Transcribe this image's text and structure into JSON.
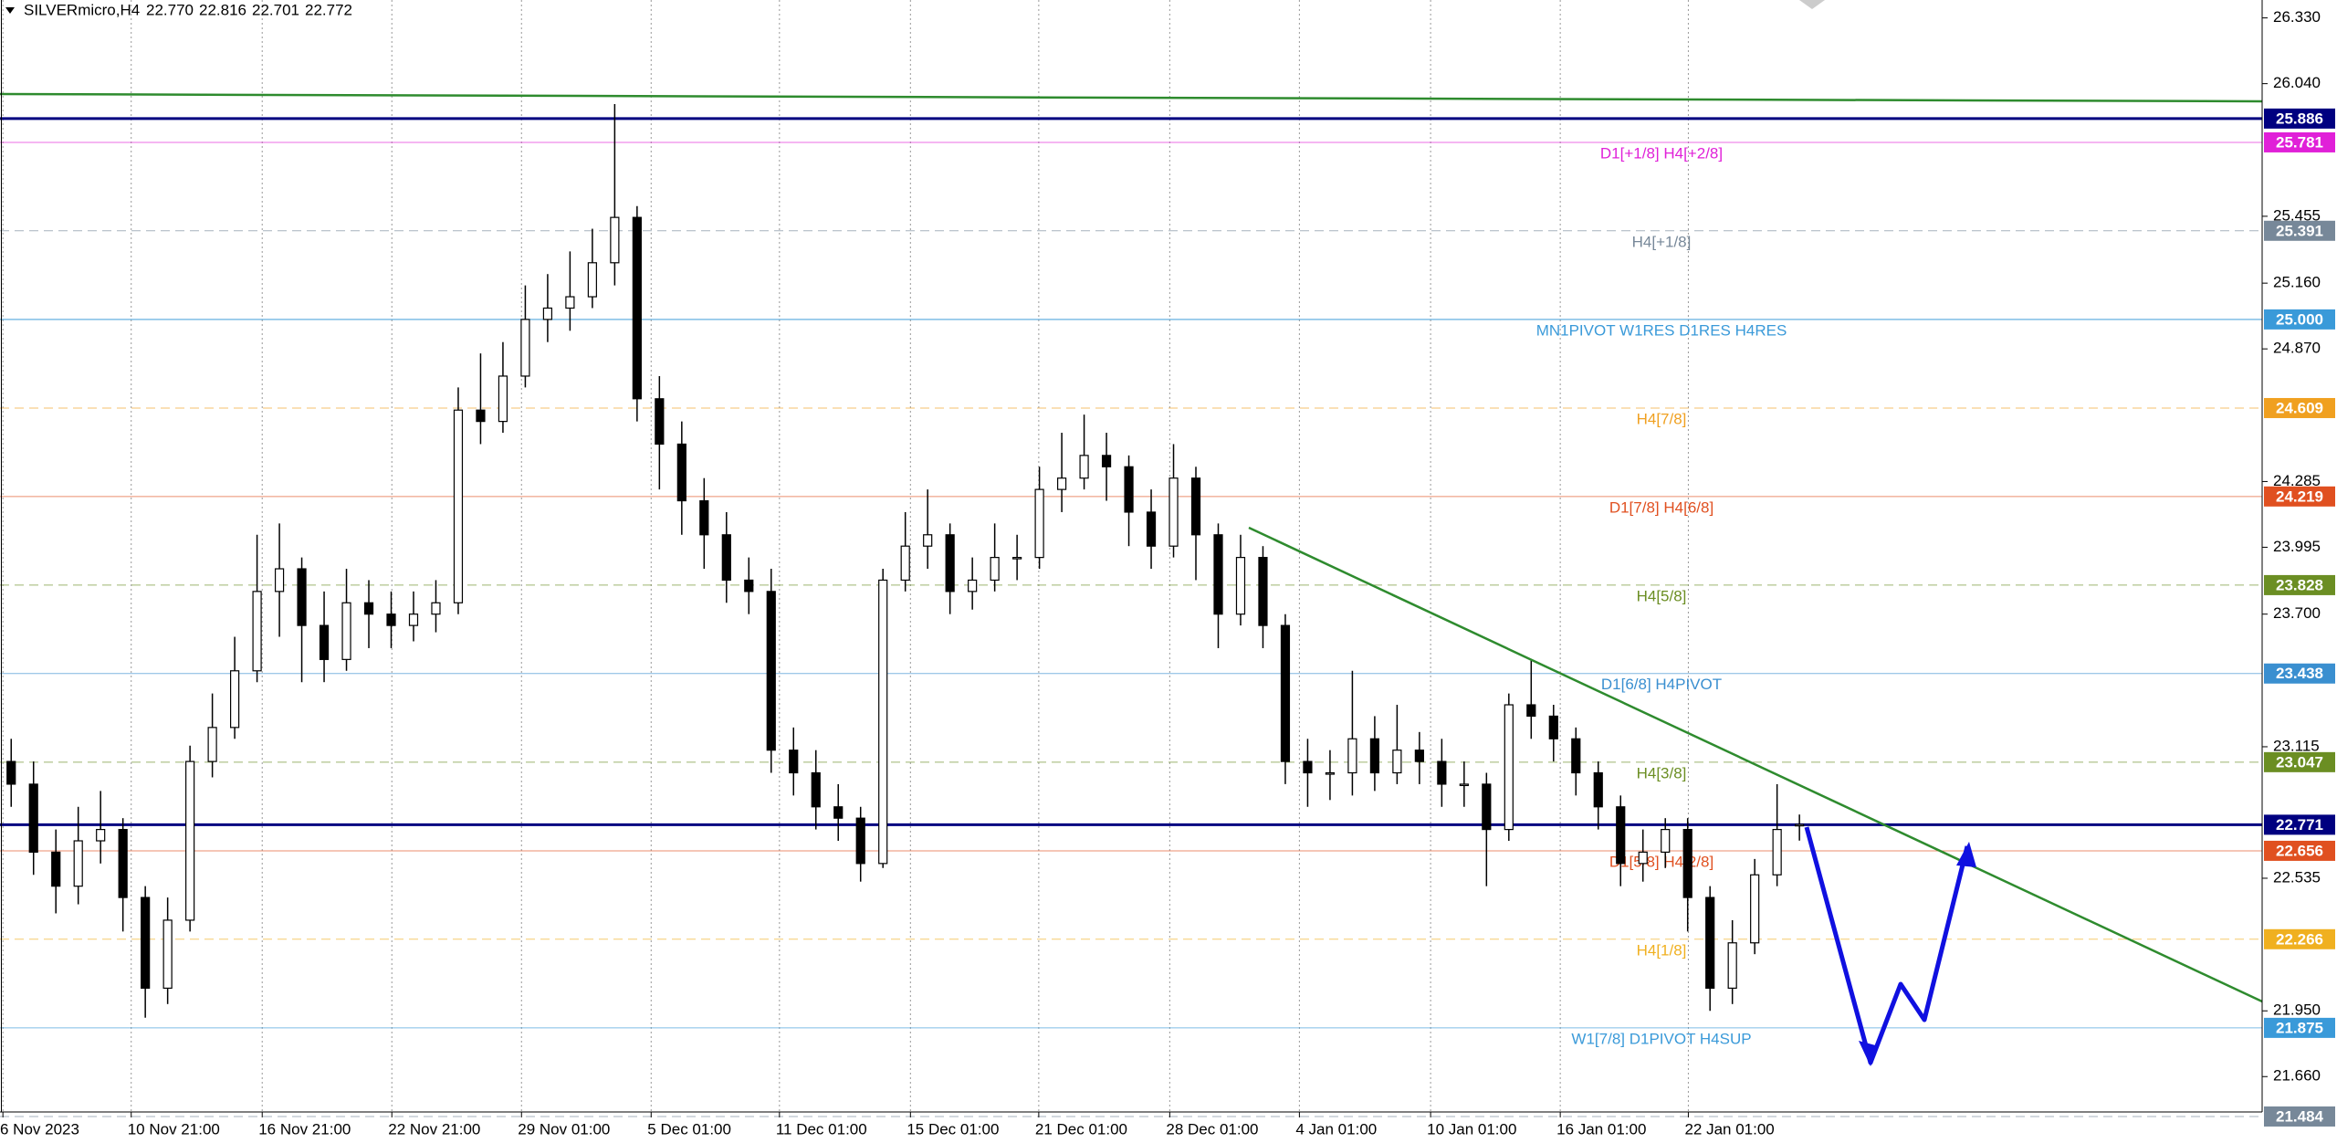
{
  "header": {
    "symbol": "SILVERmicro,H4",
    "ohlc": [
      "22.770",
      "22.816",
      "22.701",
      "22.772"
    ]
  },
  "chart_data": {
    "type": "candlestick",
    "xlim": [
      0,
      101.2
    ],
    "ylim": [
      21.504,
      26.409
    ],
    "yticks": [
      {
        "value": 26.33,
        "label": "26.330"
      },
      {
        "value": 26.04,
        "label": "26.040"
      },
      25.455,
      {
        "value": 25.16,
        "label": "25.160"
      },
      {
        "value": 24.87,
        "label": "24.870"
      },
      24.285,
      23.995,
      {
        "value": 23.7,
        "label": "23.700"
      },
      23.115,
      22.535,
      {
        "value": 21.95,
        "label": "21.950"
      },
      {
        "value": 21.66,
        "label": "21.660"
      }
    ],
    "xticks": [
      {
        "value": 0.13,
        "label": "6 Nov 2023"
      },
      {
        "value": 5.87,
        "label": "10 Nov 21:00"
      },
      {
        "value": 11.73,
        "label": "16 Nov 21:00"
      },
      {
        "value": 17.53,
        "label": "22 Nov 21:00"
      },
      {
        "value": 23.33,
        "label": "29 Nov 01:00"
      },
      {
        "value": 29.13,
        "label": "5 Dec 01:00"
      },
      {
        "value": 34.87,
        "label": "11 Dec 01:00"
      },
      {
        "value": 40.73,
        "label": "15 Dec 01:00"
      },
      {
        "value": 46.47,
        "label": "21 Dec 01:00"
      },
      {
        "value": 52.33,
        "label": "28 Dec 01:00"
      },
      {
        "value": 58.13,
        "label": "4 Jan 01:00"
      },
      {
        "value": 64,
        "label": "10 Jan 01:00"
      },
      {
        "value": 69.8,
        "label": "16 Jan 01:00"
      },
      {
        "value": 75.53,
        "label": "22 Jan 01:00"
      }
    ],
    "grid": true,
    "up_color": "#ffffff",
    "down_color": "#000000",
    "open": [
      23.05,
      22.95,
      22.65,
      22.5,
      22.7,
      22.75,
      22.45,
      22.05,
      22.35,
      23.05,
      23.2,
      23.45,
      23.8,
      23.9,
      23.65,
      23.5,
      23.75,
      23.7,
      23.65,
      23.7,
      23.75,
      24.6,
      24.55,
      24.75,
      25.0,
      25.05,
      25.1,
      25.25,
      25.45,
      24.65,
      24.45,
      24.2,
      24.05,
      23.85,
      23.8,
      23.1,
      23.0,
      22.85,
      22.8,
      22.6,
      23.85,
      24.0,
      24.05,
      23.8,
      23.85,
      23.95,
      23.95,
      24.25,
      24.3,
      24.4,
      24.35,
      24.15,
      24.0,
      24.3,
      24.05,
      23.7,
      23.95,
      23.65,
      23.05,
      23.0,
      23.0,
      23.15,
      23.0,
      23.1,
      23.05,
      22.95,
      22.95,
      22.75,
      23.3,
      23.25,
      23.15,
      23.0,
      22.85,
      22.6,
      22.65,
      22.75,
      22.45,
      22.05,
      22.25,
      22.55,
      22.77
    ],
    "high": [
      23.15,
      23.05,
      22.75,
      22.85,
      22.92,
      22.8,
      22.5,
      22.45,
      23.12,
      23.35,
      23.6,
      24.05,
      24.1,
      23.95,
      23.8,
      23.9,
      23.85,
      23.8,
      23.8,
      23.85,
      24.7,
      24.85,
      24.9,
      25.15,
      25.2,
      25.3,
      25.4,
      25.95,
      25.5,
      24.75,
      24.55,
      24.3,
      24.15,
      23.95,
      23.9,
      23.2,
      23.1,
      22.95,
      22.85,
      23.9,
      24.15,
      24.25,
      24.1,
      23.95,
      24.1,
      24.05,
      24.35,
      24.5,
      24.58,
      24.5,
      24.4,
      24.25,
      24.45,
      24.35,
      24.1,
      24.05,
      24.0,
      23.7,
      23.15,
      23.1,
      23.45,
      23.25,
      23.3,
      23.18,
      23.15,
      23.05,
      23.0,
      23.35,
      23.5,
      23.3,
      23.2,
      23.05,
      22.9,
      22.75,
      22.8,
      22.8,
      22.5,
      22.35,
      22.62,
      22.95,
      22.816
    ],
    "low": [
      22.85,
      22.55,
      22.38,
      22.42,
      22.6,
      22.3,
      21.92,
      21.98,
      22.3,
      22.98,
      23.15,
      23.4,
      23.6,
      23.4,
      23.4,
      23.45,
      23.55,
      23.55,
      23.58,
      23.62,
      23.7,
      24.45,
      24.5,
      24.7,
      24.9,
      24.95,
      25.05,
      25.15,
      24.55,
      24.25,
      24.05,
      23.9,
      23.75,
      23.7,
      23.0,
      22.9,
      22.75,
      22.7,
      22.52,
      22.58,
      23.8,
      23.9,
      23.7,
      23.72,
      23.8,
      23.85,
      23.9,
      24.15,
      24.25,
      24.2,
      24.0,
      23.9,
      23.95,
      23.85,
      23.55,
      23.65,
      23.55,
      22.95,
      22.85,
      22.88,
      22.9,
      22.92,
      22.95,
      22.95,
      22.85,
      22.85,
      22.5,
      22.7,
      23.15,
      23.05,
      22.9,
      22.75,
      22.5,
      22.52,
      22.58,
      22.3,
      21.95,
      21.98,
      22.2,
      22.5,
      22.701
    ],
    "close": [
      22.95,
      22.65,
      22.5,
      22.7,
      22.75,
      22.45,
      22.05,
      22.35,
      23.05,
      23.2,
      23.45,
      23.8,
      23.9,
      23.65,
      23.5,
      23.75,
      23.7,
      23.65,
      23.7,
      23.75,
      24.6,
      24.55,
      24.75,
      25.0,
      25.05,
      25.1,
      25.25,
      25.45,
      24.65,
      24.45,
      24.2,
      24.05,
      23.85,
      23.8,
      23.1,
      23.0,
      22.85,
      22.8,
      22.6,
      23.85,
      24.0,
      24.05,
      23.8,
      23.85,
      23.95,
      23.95,
      24.25,
      24.3,
      24.4,
      24.35,
      24.15,
      24.0,
      24.3,
      24.05,
      23.7,
      23.95,
      23.65,
      23.05,
      23.0,
      23.0,
      23.15,
      23.0,
      23.1,
      23.05,
      22.95,
      22.95,
      22.75,
      23.3,
      23.25,
      23.15,
      23.0,
      22.85,
      22.6,
      22.65,
      22.75,
      22.45,
      22.05,
      22.25,
      22.55,
      22.75,
      22.772
    ],
    "levels": [
      {
        "value": 25.886,
        "color": "#000080",
        "style": "solid",
        "width": 3
      },
      {
        "value": 25.781,
        "color": "#e020d8",
        "style": "solid",
        "width": 1,
        "text": "D1[+1/8] H4[+2/8]"
      },
      {
        "value": 25.391,
        "color": "#778899",
        "style": "dash",
        "width": 1,
        "text": "H4[+1/8]"
      },
      {
        "value": 25.0,
        "value_label": "25.000",
        "color": "#3a9ad9",
        "style": "solid",
        "width": 1.5,
        "text": "MN1PIVOT W1RES D1RES H4RES"
      },
      {
        "value": 24.609,
        "color": "#f0a020",
        "style": "dash",
        "width": 1,
        "text": "H4[7/8]"
      },
      {
        "value": 24.219,
        "color": "#e05020",
        "style": "solid",
        "width": 1,
        "text": "D1[7/8] H4[6/8]"
      },
      {
        "value": 23.828,
        "color": "#6b8e23",
        "style": "dash",
        "width": 1,
        "text": "H4[5/8]"
      },
      {
        "value": 23.438,
        "color": "#3a8fd0",
        "style": "solid",
        "width": 1,
        "text": "D1[6/8] H4PIVOT"
      },
      {
        "value": 23.047,
        "color": "#6b8e23",
        "style": "dash",
        "width": 1,
        "text": "H4[3/8]"
      },
      {
        "value": 22.771,
        "color": "#000080",
        "style": "solid",
        "width": 3
      },
      {
        "value": 22.656,
        "color": "#e05020",
        "style": "solid",
        "width": 1,
        "text": "D1[5/8] H4[2/8]"
      },
      {
        "value": 22.266,
        "color": "#f0b020",
        "style": "dash",
        "width": 1,
        "text": "H4[1/8]"
      },
      {
        "value": 21.875,
        "color": "#3a9ad9",
        "style": "solid",
        "width": 1,
        "text": "W1[7/8] D1PIVOT H4SUP"
      },
      {
        "value": 21.484,
        "color": "#778899",
        "style": "dash",
        "width": 1
      }
    ]
  }
}
